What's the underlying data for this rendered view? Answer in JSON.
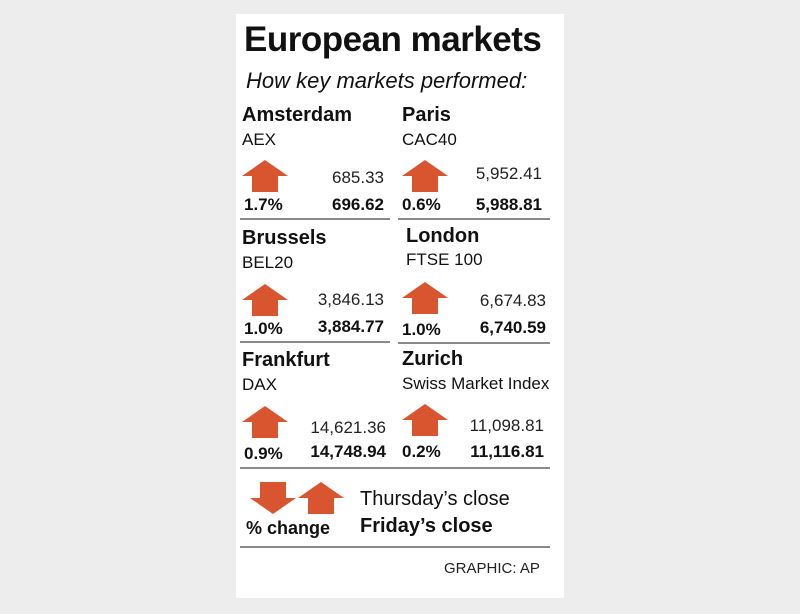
{
  "title": "European markets",
  "subtitle": "How key markets performed:",
  "arrow_color": "#d9552f",
  "markets": [
    {
      "city": "Amsterdam",
      "index": "AEX",
      "direction": "up",
      "pct": "1.7%",
      "thursday_close": "685.33",
      "friday_close": "696.62"
    },
    {
      "city": "Paris",
      "index": "CAC40",
      "direction": "up",
      "pct": "0.6%",
      "thursday_close": "5,952.41",
      "friday_close": "5,988.81"
    },
    {
      "city": "Brussels",
      "index": "BEL20",
      "direction": "up",
      "pct": "1.0%",
      "thursday_close": "3,846.13",
      "friday_close": "3,884.77"
    },
    {
      "city": "London",
      "index": "FTSE 100",
      "direction": "up",
      "pct": "1.0%",
      "thursday_close": "6,674.83",
      "friday_close": "6,740.59"
    },
    {
      "city": "Frankfurt",
      "index": "DAX",
      "direction": "up",
      "pct": "0.9%",
      "thursday_close": "14,621.36",
      "friday_close": "14,748.94"
    },
    {
      "city": "Zurich",
      "index": "Swiss Market Index",
      "direction": "up",
      "pct": "0.2%",
      "thursday_close": "11,098.81",
      "friday_close": "11,116.81"
    }
  ],
  "legend": {
    "pct_change": "% change",
    "thursday": "Thursday’s close",
    "friday": "Friday’s close"
  },
  "credit": "GRAPHIC: AP"
}
